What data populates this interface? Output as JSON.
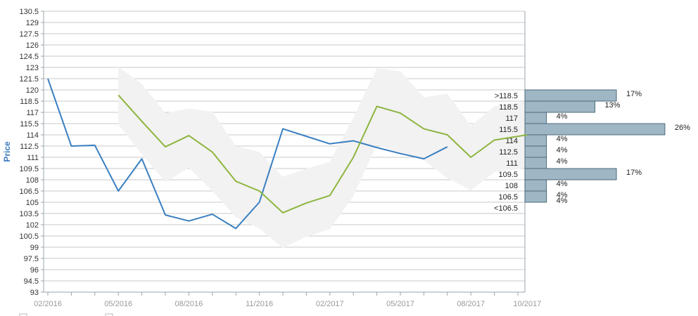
{
  "chart_data": {
    "type": "line",
    "ylabel": "Price",
    "xlabel": "",
    "title": "",
    "ylim": [
      93,
      130.5
    ],
    "y_ticks": [
      "93",
      "94.5",
      "96",
      "97.5",
      "99",
      "100.5",
      "102",
      "103.5",
      "105",
      "106.5",
      "108",
      "109.5",
      "111",
      "112.5",
      "114",
      "115.5",
      "117",
      "118.5",
      "120",
      "121.5",
      "123",
      "124.5",
      "126",
      "127.5",
      "129",
      "130.5"
    ],
    "x_tick_labels": [
      "02/2016",
      "05/2016",
      "08/2016",
      "11/2016",
      "02/2017",
      "05/2017",
      "08/2017",
      "10/2017"
    ],
    "x_tick_positions": [
      0,
      3,
      6,
      9,
      12,
      15,
      18,
      20.4
    ],
    "series": [
      {
        "color": "#3a7fc1",
        "x": [
          0,
          1,
          2,
          3,
          4,
          5,
          6,
          7,
          8,
          9,
          10,
          11,
          12,
          13,
          14,
          15,
          16,
          17
        ],
        "values": [
          121.5,
          112.5,
          112.6,
          106.5,
          110.8,
          103.3,
          102.5,
          103.4,
          101.5,
          105,
          114.8,
          113.8,
          112.8,
          113.2,
          112.3,
          111.5,
          110.8,
          112.4
        ]
      },
      {
        "color": "#8db53f",
        "x": [
          3,
          4,
          5,
          6,
          7,
          8,
          9,
          10,
          11,
          12,
          13,
          14,
          15,
          16,
          17,
          18,
          19,
          20.4
        ],
        "values": [
          119.3,
          115.8,
          112.4,
          113.9,
          111.7,
          107.8,
          106.5,
          103.6,
          104.9,
          105.9,
          111,
          117.8,
          116.9,
          114.8,
          114,
          111,
          113.3,
          114
        ]
      }
    ],
    "band": {
      "color": "#f2f2f2",
      "x": [
        3,
        4,
        5,
        6,
        7,
        8,
        9,
        10,
        11,
        12,
        13,
        14,
        15,
        16,
        17,
        18,
        19,
        20.4
      ],
      "upper": [
        123.1,
        120.8,
        116.9,
        117.5,
        117.1,
        112.5,
        111.7,
        108.4,
        109.5,
        110.4,
        116.3,
        122.9,
        122.5,
        119,
        119.5,
        115.2,
        117.8,
        118.5
      ],
      "lower": [
        115.4,
        111.4,
        107.7,
        109.6,
        106.5,
        103,
        101.5,
        98.9,
        100.4,
        101.4,
        105.8,
        112.7,
        111.5,
        110.6,
        108.2,
        106.6,
        109,
        109.6
      ]
    },
    "histogram": {
      "color": "#9fb6c4",
      "bins": [
        {
          "label": ">118.5",
          "percent": "17%",
          "value": 17
        },
        {
          "label": "118.5",
          "percent": "13%",
          "value": 13
        },
        {
          "label": "117",
          "percent": "4%",
          "value": 4
        },
        {
          "label": "115.5",
          "percent": "26%",
          "value": 26
        },
        {
          "label": "114",
          "percent": "4%",
          "value": 4
        },
        {
          "label": "112.5",
          "percent": "4%",
          "value": 4
        },
        {
          "label": "111",
          "percent": "4%",
          "value": 4
        },
        {
          "label": "109.5",
          "percent": "17%",
          "value": 17
        },
        {
          "label": "108",
          "percent": "4%",
          "value": 4
        },
        {
          "label": "106.5",
          "percent": "4%",
          "value": 4
        },
        {
          "label": "<106.5",
          "percent": "",
          "value": 0
        }
      ],
      "extra_percent": "4%",
      "extra_value": 4
    },
    "grid": true,
    "colors": {
      "grid": "#c8c8c8",
      "axis": "#9aa4ad"
    }
  }
}
